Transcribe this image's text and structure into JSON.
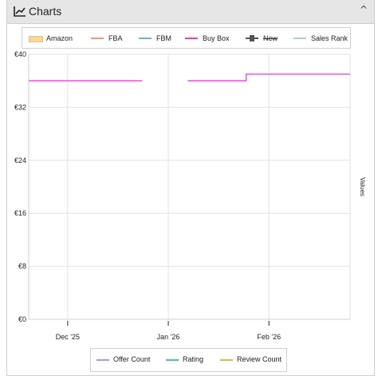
{
  "header": {
    "title": "Charts",
    "collapse_glyph": "^"
  },
  "legend": {
    "items": [
      {
        "label": "Amazon",
        "color": "#f8d79a",
        "style": "box"
      },
      {
        "label": "FBA",
        "color": "#f4977a",
        "style": "line"
      },
      {
        "label": "FBM",
        "color": "#5fb6e0",
        "style": "line"
      },
      {
        "label": "Buy Box",
        "color": "#ea3ad2",
        "style": "line"
      },
      {
        "label": "New",
        "color": "#555555",
        "style": "marker",
        "strikethrough": true
      },
      {
        "label": "Sales Rank",
        "color": "#a9d8a4",
        "style": "line"
      }
    ]
  },
  "bottom_legend": {
    "items": [
      {
        "label": "Offer Count",
        "color": "#a79be0"
      },
      {
        "label": "Rating",
        "color": "#4cbfa8"
      },
      {
        "label": "Review Count",
        "color": "#c9c24a"
      }
    ]
  },
  "chart_data": {
    "type": "line",
    "ylabel": "Values",
    "ylim": [
      0,
      40
    ],
    "y_ticks": [
      "€0",
      "€8",
      "€16",
      "€24",
      "€32",
      "€40"
    ],
    "x_ticks": [
      "Dec '25",
      "Jan '26",
      "Feb '26"
    ],
    "xlim": [
      "2025-11-19",
      "2026-02-26"
    ],
    "grid": true,
    "series": [
      {
        "name": "Buy Box",
        "color": "#ea3ad2",
        "segments": [
          [
            {
              "x": "2025-11-19",
              "y": 36.0
            },
            {
              "x": "2025-12-24",
              "y": 36.0
            }
          ],
          [
            {
              "x": "2026-01-07",
              "y": 36.0
            },
            {
              "x": "2026-01-25",
              "y": 36.0
            },
            {
              "x": "2026-01-25",
              "y": 37.0
            },
            {
              "x": "2026-02-26",
              "y": 37.0
            }
          ]
        ]
      }
    ]
  }
}
